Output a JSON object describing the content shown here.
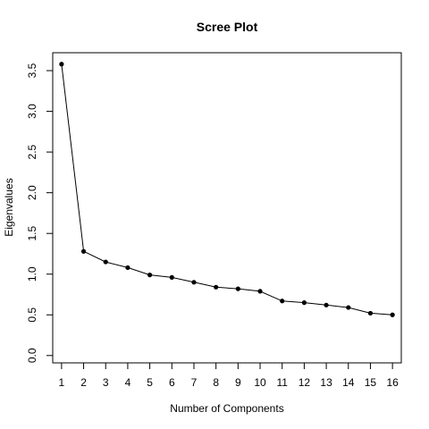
{
  "chart_data": {
    "type": "line",
    "title": "Scree Plot",
    "xlabel": "Number of Components",
    "ylabel": "Eigenvalues",
    "x": [
      1,
      2,
      3,
      4,
      5,
      6,
      7,
      8,
      9,
      10,
      11,
      12,
      13,
      14,
      15,
      16
    ],
    "series": [
      {
        "values": [
          3.58,
          1.28,
          1.15,
          1.08,
          0.99,
          0.96,
          0.9,
          0.84,
          0.82,
          0.79,
          0.67,
          0.65,
          0.62,
          0.59,
          0.52,
          0.5
        ]
      }
    ],
    "xlim": [
      0.6,
      16.4
    ],
    "ylim": [
      -0.09,
      3.72
    ],
    "xticks": [
      1,
      2,
      3,
      4,
      5,
      6,
      7,
      8,
      9,
      10,
      11,
      12,
      13,
      14,
      15,
      16
    ],
    "xtick_labels": [
      "1",
      "2",
      "3",
      "4",
      "5",
      "6",
      "7",
      "8",
      "9",
      "10",
      "11",
      "12",
      "13",
      "14",
      "15",
      "16"
    ],
    "yticks": [
      0.0,
      0.5,
      1.0,
      1.5,
      2.0,
      2.5,
      3.0,
      3.5
    ],
    "ytick_labels": [
      "0.0",
      "0.5",
      "1.0",
      "1.5",
      "2.0",
      "2.5",
      "3.0",
      "3.5"
    ],
    "grid": false,
    "legend": "none",
    "colors": {
      "line": "#000000",
      "points": "#000000",
      "background": "#ffffff"
    }
  }
}
